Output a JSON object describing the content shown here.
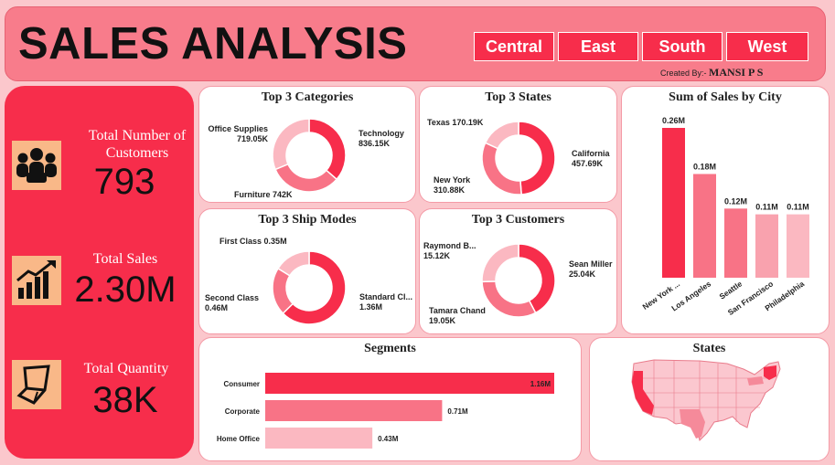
{
  "header": {
    "title": "SALES ANALYSIS",
    "regions": [
      "Central",
      "East",
      "South",
      "West"
    ],
    "created_prefix": "Created By:-",
    "created_name": "MANSI P S"
  },
  "kpis": {
    "customers": {
      "label": "Total Number of Customers",
      "value": "793",
      "icon": "customers-icon"
    },
    "sales": {
      "label": "Total Sales",
      "value": "2.30M",
      "icon": "sales-growth-icon"
    },
    "quantity": {
      "label": "Total Quantity",
      "value": "38K",
      "icon": "quantity-box-icon"
    }
  },
  "colors": {
    "primary": "#f72d4b",
    "mid": "#f87386",
    "light": "#fbb8c1",
    "header": "#f87c8b",
    "kpi_icon_bg": "#f9b888"
  },
  "charts": {
    "categories": {
      "title": "Top 3 Categories",
      "slices": [
        {
          "name": "Technology",
          "label": "836.15K",
          "value": 836.15
        },
        {
          "name": "Furniture",
          "label": "742K",
          "value": 742
        },
        {
          "name": "Office Supplies",
          "label": "719.05K",
          "value": 719.05
        }
      ]
    },
    "states": {
      "title": "Top 3 States",
      "slices": [
        {
          "name": "California",
          "label": "457.69K",
          "value": 457.69
        },
        {
          "name": "New York",
          "label": "310.88K",
          "value": 310.88
        },
        {
          "name": "Texas",
          "label": "170.19K",
          "value": 170.19
        }
      ]
    },
    "ship_modes": {
      "title": "Top 3 Ship Modes",
      "slices": [
        {
          "name": "Standard Cl...",
          "label": "1.36M",
          "value": 1.36
        },
        {
          "name": "Second Class",
          "label": "0.46M",
          "value": 0.46
        },
        {
          "name": "First Class",
          "label": "0.35M",
          "value": 0.35
        }
      ]
    },
    "customers": {
      "title": "Top 3 Customers",
      "slices": [
        {
          "name": "Sean Miller",
          "label": "25.04K",
          "value": 25.04
        },
        {
          "name": "Tamara Chand",
          "label": "19.05K",
          "value": 19.05
        },
        {
          "name": "Raymond B...",
          "label": "15.12K",
          "value": 15.12
        }
      ]
    },
    "city": {
      "title": "Sum of Sales by City",
      "categories": [
        "New York ...",
        "Los Angeles",
        "Seattle",
        "San Francisco",
        "Philadelphia"
      ],
      "values": [
        0.26,
        0.18,
        0.12,
        0.11,
        0.11
      ],
      "labels": [
        "0.26M",
        "0.18M",
        "0.12M",
        "0.11M",
        "0.11M"
      ]
    },
    "segments": {
      "title": "Segments",
      "categories": [
        "Consumer",
        "Corporate",
        "Home Office"
      ],
      "values": [
        1.16,
        0.71,
        0.43
      ],
      "labels": [
        "1.16M",
        "0.71M",
        "0.43M"
      ]
    },
    "map": {
      "title": "States"
    }
  },
  "chart_data": [
    {
      "type": "pie",
      "title": "Top 3 Categories",
      "categories": [
        "Technology",
        "Furniture",
        "Office Supplies"
      ],
      "values": [
        836.15,
        742,
        719.05
      ],
      "unit": "K"
    },
    {
      "type": "pie",
      "title": "Top 3 States",
      "categories": [
        "California",
        "New York",
        "Texas"
      ],
      "values": [
        457.69,
        310.88,
        170.19
      ],
      "unit": "K"
    },
    {
      "type": "pie",
      "title": "Top 3 Ship Modes",
      "categories": [
        "Standard Cl...",
        "Second Class",
        "First Class"
      ],
      "values": [
        1.36,
        0.46,
        0.35
      ],
      "unit": "M"
    },
    {
      "type": "pie",
      "title": "Top 3 Customers",
      "categories": [
        "Sean Miller",
        "Tamara Chand",
        "Raymond B..."
      ],
      "values": [
        25.04,
        19.05,
        15.12
      ],
      "unit": "K"
    },
    {
      "type": "bar",
      "title": "Sum of Sales by City",
      "categories": [
        "New York ...",
        "Los Angeles",
        "Seattle",
        "San Francisco",
        "Philadelphia"
      ],
      "values": [
        0.26,
        0.18,
        0.12,
        0.11,
        0.11
      ],
      "unit": "M"
    },
    {
      "type": "bar",
      "orientation": "horizontal",
      "title": "Segments",
      "categories": [
        "Consumer",
        "Corporate",
        "Home Office"
      ],
      "values": [
        1.16,
        0.71,
        0.43
      ],
      "unit": "M"
    }
  ]
}
